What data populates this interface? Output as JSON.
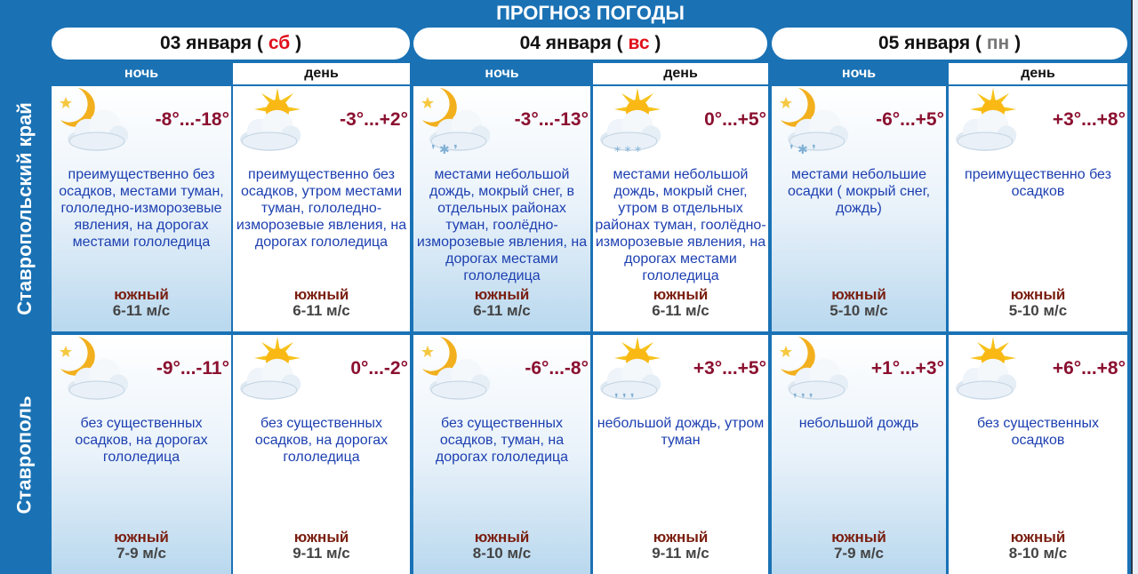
{
  "title": "ПРОГНОЗ ПОГОДЫ",
  "colors": {
    "brand": "#1a72b5",
    "temperature": "#8b1030",
    "description": "#1c3fb0",
    "wind_direction": "#7a1e10",
    "saturday": "#e0101a",
    "sunday": "#e0101a",
    "monday": "#777777"
  },
  "dates": [
    {
      "prefix": "03 января ( ",
      "day": "сб",
      "suffix": " )",
      "day_color": "#e0101a"
    },
    {
      "prefix": "04 января ( ",
      "day": "вс",
      "suffix": " )",
      "day_color": "#e0101a"
    },
    {
      "prefix": "05 января ( ",
      "day": "пн",
      "suffix": " )",
      "day_color": "#777777"
    }
  ],
  "periods": [
    "ночь",
    "день",
    "ночь",
    "день",
    "ночь",
    "день"
  ],
  "rows": [
    {
      "region": "Ставропольский край",
      "cells": [
        {
          "icon": "moon-cloud",
          "temp": "-8°...-18°",
          "desc": "преимущественно без осадков, местами туман, гололедно-изморозевые явления, на дорогах местами гололедица",
          "wind_dir": "южный",
          "wind_speed": "6-11 м/с"
        },
        {
          "icon": "sun-cloud",
          "temp": "-3°...+2°",
          "desc": "преимущественно без осадков, утром местами туман, гололедно-изморозевые явления, на дорогах гололедица",
          "wind_dir": "южный",
          "wind_speed": "6-11 м/с"
        },
        {
          "icon": "moon-cloud-sleet",
          "temp": "-3°...-13°",
          "desc": "местами небольшой дождь, мокрый снег, в отдельных районах туман, гоолёдно-изморозевые явления, на дорогах местами гололедица",
          "wind_dir": "южный",
          "wind_speed": "6-11 м/с"
        },
        {
          "icon": "sun-cloud-snow",
          "temp": "0°...+5°",
          "desc": "местами небольшой дождь, мокрый снег, утром в отдельных районах туман, гоолёдно-изморозевые явления, на дорогах местами гололедица",
          "wind_dir": "южный",
          "wind_speed": "6-11 м/с"
        },
        {
          "icon": "moon-cloud-sleet",
          "temp": "-6°...+5°",
          "desc": "местами небольшие осадки ( мокрый снег, дождь)",
          "wind_dir": "южный",
          "wind_speed": "5-10 м/с"
        },
        {
          "icon": "sun-cloud",
          "temp": "+3°...+8°",
          "desc": "преимущественно без осадков",
          "wind_dir": "южный",
          "wind_speed": "5-10 м/с"
        }
      ]
    },
    {
      "region": "Ставрополь",
      "cells": [
        {
          "icon": "moon-cloud",
          "temp": "-9°...-11°",
          "desc": "без существенных осадков, на дорогах гололедица",
          "wind_dir": "южный",
          "wind_speed": "7-9 м/с"
        },
        {
          "icon": "sun-cloud",
          "temp": "0°...-2°",
          "desc": "без существенных осадков, на дорогах гололедица",
          "wind_dir": "южный",
          "wind_speed": "9-11 м/с"
        },
        {
          "icon": "moon-cloud",
          "temp": "-6°...-8°",
          "desc": "без существенных осадков, туман, на дорогах гололедица",
          "wind_dir": "южный",
          "wind_speed": "8-10 м/с"
        },
        {
          "icon": "sun-cloud-rain",
          "temp": "+3°...+5°",
          "desc": "небольшой дождь, утром туман",
          "wind_dir": "южный",
          "wind_speed": "9-11 м/с"
        },
        {
          "icon": "moon-cloud-rain",
          "temp": "+1°...+3°",
          "desc": "небольшой дождь",
          "wind_dir": "южный",
          "wind_speed": "7-9 м/с"
        },
        {
          "icon": "sun-cloud",
          "temp": "+6°...+8°",
          "desc": "без существенных осадков",
          "wind_dir": "южный",
          "wind_speed": "8-10 м/с"
        }
      ]
    }
  ]
}
